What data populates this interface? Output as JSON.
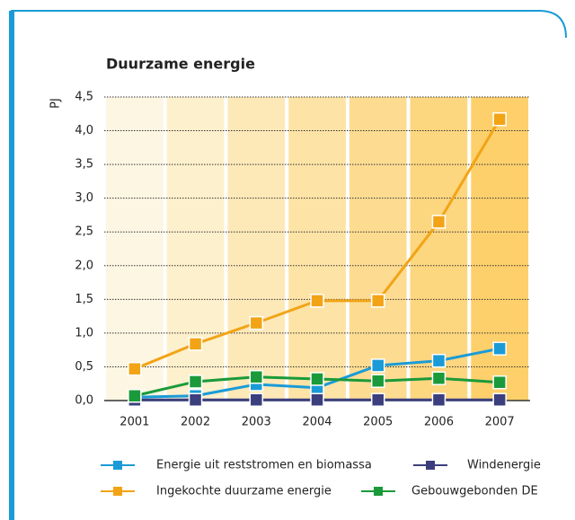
{
  "chart_data": {
    "type": "line",
    "title": "Duurzame energie",
    "y_label": "PJ",
    "categories": [
      "2001",
      "2002",
      "2003",
      "2004",
      "2005",
      "2006",
      "2007"
    ],
    "series": [
      {
        "name": "Energie uit reststromen en biomassa",
        "color": "#1a9bd7",
        "values": [
          0.05,
          0.07,
          0.24,
          0.19,
          0.52,
          0.59,
          0.77
        ]
      },
      {
        "name": "Windenergie",
        "color": "#3b3f7e",
        "values": [
          0.01,
          0.01,
          0.01,
          0.01,
          0.01,
          0.01,
          0.01
        ]
      },
      {
        "name": "Ingekochte duurzame energie",
        "color": "#f2a416",
        "values": [
          0.47,
          0.84,
          1.15,
          1.48,
          1.48,
          2.65,
          4.17
        ]
      },
      {
        "name": "Gebouwgebonden DE",
        "color": "#1a9a3a",
        "values": [
          0.07,
          0.28,
          0.35,
          0.32,
          0.29,
          0.33,
          0.27
        ]
      }
    ],
    "ylim": [
      0,
      4.5
    ],
    "yticks": [
      {
        "value": 0,
        "label": "0,0"
      },
      {
        "value": 0.5,
        "label": "0,5"
      },
      {
        "value": 1,
        "label": "1,0"
      },
      {
        "value": 1.5,
        "label": "1,5"
      },
      {
        "value": 2,
        "label": "2,0"
      },
      {
        "value": 2.5,
        "label": "2,5"
      },
      {
        "value": 3,
        "label": "3,0"
      },
      {
        "value": 3.5,
        "label": "3,5"
      },
      {
        "value": 4,
        "label": "4,0"
      },
      {
        "value": 4.5,
        "label": "4,5"
      }
    ],
    "grid": true
  }
}
